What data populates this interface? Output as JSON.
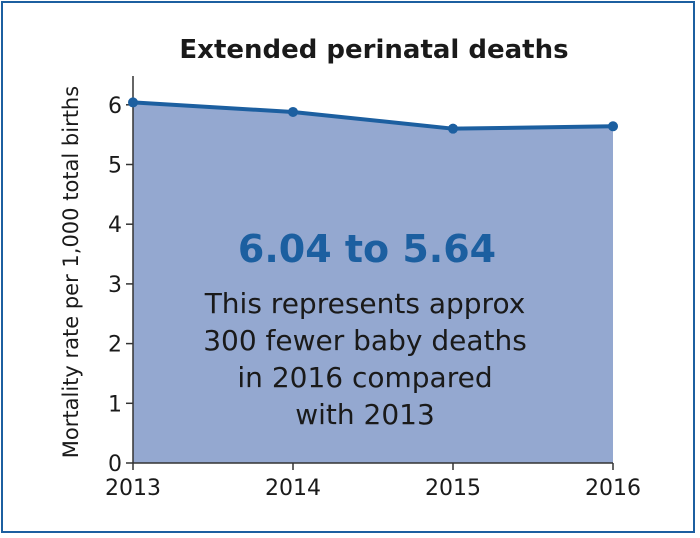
{
  "chart_data": {
    "type": "area",
    "title": "Extended perinatal deaths",
    "xlabel": "",
    "ylabel": "Mortality rate per 1,000 total births",
    "categories": [
      "2013",
      "2014",
      "2015",
      "2016"
    ],
    "series": [
      {
        "values": [
          6.04,
          5.88,
          5.6,
          5.64
        ]
      }
    ],
    "ylim": [
      0,
      6.6
    ],
    "yticks": [
      "0",
      "1",
      "2",
      "3",
      "4",
      "5",
      "6"
    ],
    "annotation": {
      "headline": "6.04 to 5.64",
      "lines": [
        "This represents approx",
        "300 fewer baby deaths",
        "in 2016 compared",
        "with 2013"
      ]
    },
    "grid": false,
    "legend": "none",
    "colors": {
      "line": "#1c5fa0",
      "fill": "#94a8d0",
      "border": "#1c5fa0",
      "headline": "#1c5fa0"
    }
  }
}
